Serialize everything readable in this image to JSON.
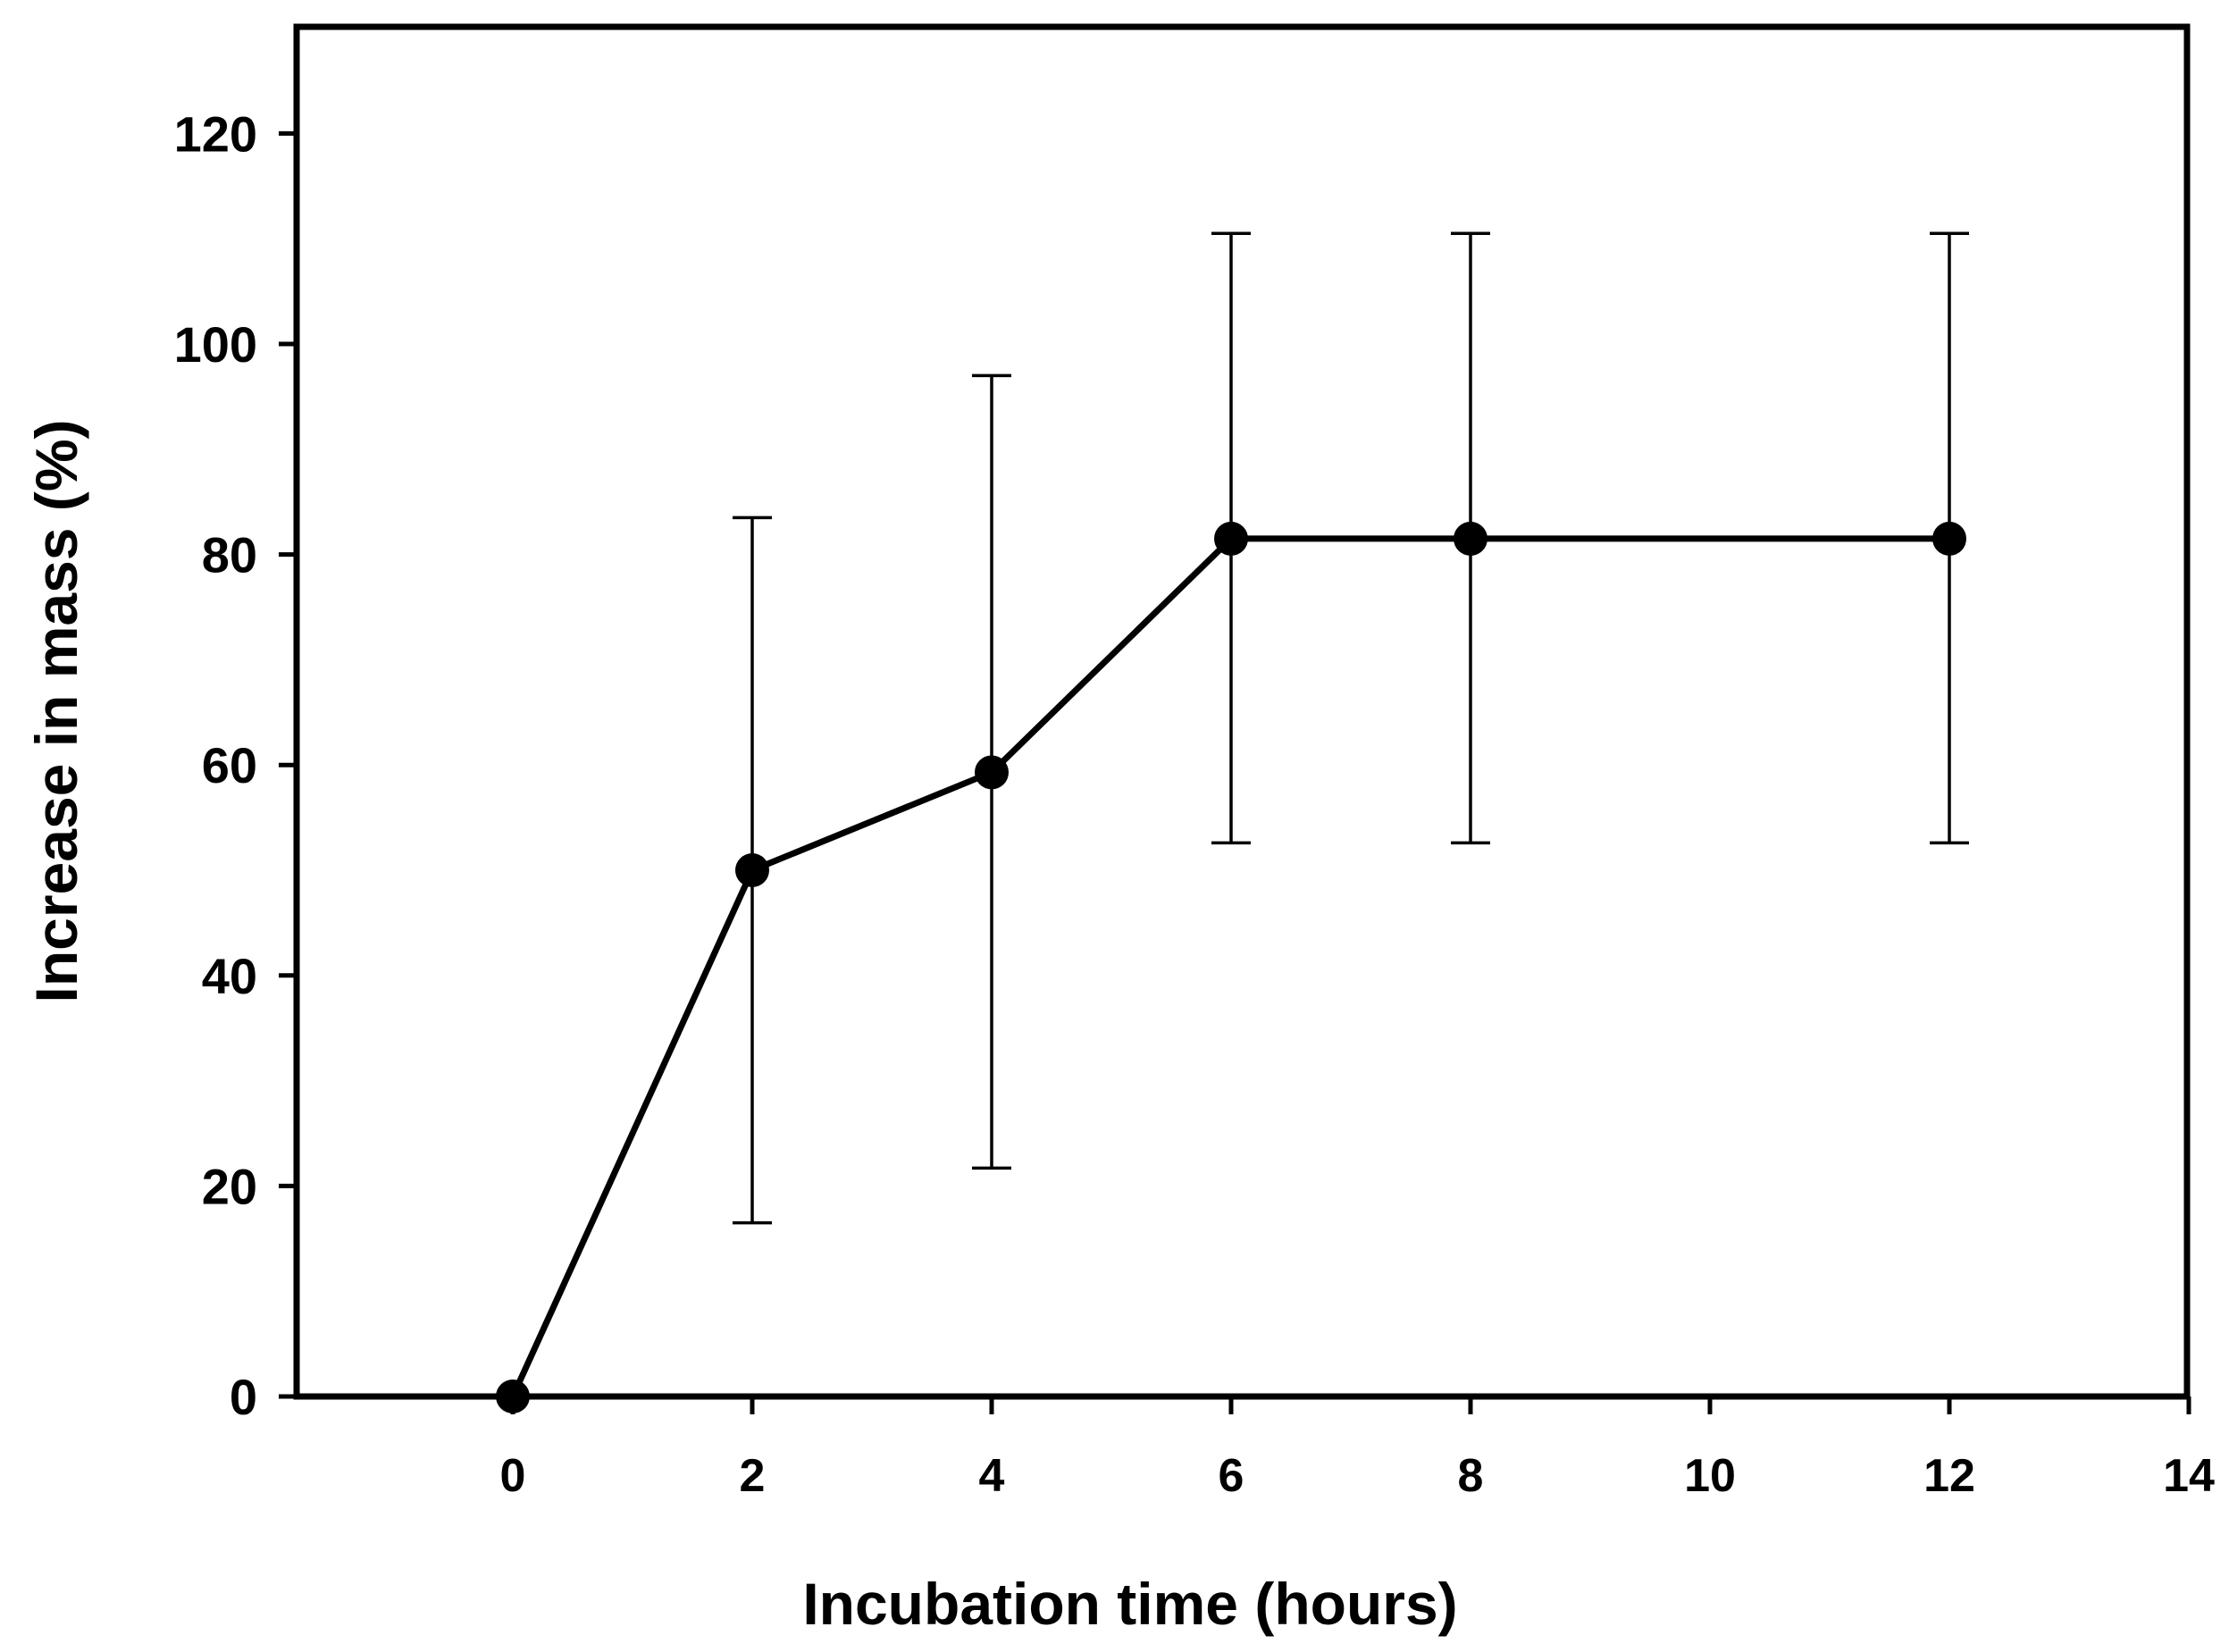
{
  "chart_data": {
    "type": "line",
    "title": "",
    "xlabel": "Incubation time (hours)",
    "ylabel": "Increase in mass (%)",
    "xlim": [
      -2.5,
      14
    ],
    "ylim": [
      0,
      130
    ],
    "x_ticks": [
      0,
      2,
      4,
      6,
      8,
      10,
      12,
      14
    ],
    "y_ticks": [
      0,
      20,
      40,
      60,
      80,
      100,
      120
    ],
    "grid": false,
    "legend": "none",
    "series": [
      {
        "name": "Increase in mass",
        "x": [
          0,
          2,
          4,
          6,
          8,
          12
        ],
        "y": [
          0,
          50,
          59.3,
          81.5,
          81.5,
          81.5
        ],
        "error_upper": [
          0,
          83.5,
          97,
          110.5,
          110.5,
          110.5
        ],
        "error_lower": [
          0,
          16.5,
          21.7,
          52.6,
          52.6,
          52.6
        ],
        "color": "#000000"
      }
    ]
  }
}
